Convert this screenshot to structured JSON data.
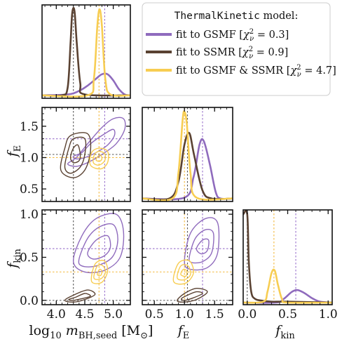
{
  "chart_data": {
    "type": "corner",
    "colors": {
      "gsmf": "#8f6bbd",
      "ssmr": "#5a4232",
      "both": "#f7cd52",
      "truth_dark": "#555555",
      "truth_purple": "#9a72cc",
      "truth_yellow": "#f3b93f"
    },
    "legend": {
      "placement": "top-right",
      "title_code": "ThermalKinetic",
      "title_suffix": " model:",
      "entries": [
        {
          "key": "gsmf",
          "label": "fit to GSMF [",
          "chi_label": "χ",
          "nu": "ν",
          "chi_value": " = 0.3]"
        },
        {
          "key": "ssmr",
          "label": "fit to SSMR [",
          "chi_label": "χ",
          "nu": "ν",
          "chi_value": " = 0.9]"
        },
        {
          "key": "both",
          "label": "fit to GSMF & SSMR [",
          "chi_label": "χ",
          "nu": "ν",
          "chi_value": " = 4.7]"
        }
      ]
    },
    "params": [
      {
        "id": "mseed",
        "label_main": "log",
        "label_sub10": "10",
        "label_m": " m",
        "label_sub": "BH,seed",
        "label_unit": " [M",
        "label_sun": "⊙",
        "label_close": "]",
        "range": [
          3.75,
          5.3
        ],
        "ticks": [
          4.0,
          4.5,
          5.0
        ],
        "ticklabels": [
          "4.0",
          "4.5",
          "5.0"
        ]
      },
      {
        "id": "fe",
        "label_main": "f",
        "label_sub": "E",
        "range": [
          0.3,
          1.8
        ],
        "ticks": [
          0.5,
          1.0,
          1.5
        ],
        "ticklabels": [
          "0.5",
          "1.0",
          "1.5"
        ]
      },
      {
        "id": "fkin",
        "label_main": "f",
        "label_sub": "kin",
        "range": [
          -0.05,
          1.05
        ],
        "ticks": [
          0.0,
          0.5,
          1.0
        ],
        "ticklabels": [
          "0.0",
          "0.5",
          "1.0"
        ]
      }
    ],
    "reference_lines": {
      "mseed": [
        {
          "value": 4.3,
          "color": "truth_dark"
        },
        {
          "value": 4.75,
          "color": "truth_yellow"
        },
        {
          "value": 4.85,
          "color": "truth_purple"
        }
      ],
      "fe": [
        {
          "value": 1.0,
          "color": "truth_yellow"
        },
        {
          "value": 1.05,
          "color": "truth_dark"
        },
        {
          "value": 1.3,
          "color": "truth_purple"
        }
      ],
      "fkin": [
        {
          "value": 0.0,
          "color": "truth_dark"
        },
        {
          "value": 0.33,
          "color": "truth_yellow"
        },
        {
          "value": 0.6,
          "color": "truth_purple"
        }
      ]
    },
    "marginals": {
      "mseed": {
        "gsmf": [
          [
            3.75,
            0.01
          ],
          [
            4.2,
            0.02
          ],
          [
            4.4,
            0.06
          ],
          [
            4.55,
            0.12
          ],
          [
            4.7,
            0.2
          ],
          [
            4.8,
            0.25
          ],
          [
            4.9,
            0.25
          ],
          [
            5.0,
            0.18
          ],
          [
            5.1,
            0.08
          ],
          [
            5.2,
            0.02
          ],
          [
            5.3,
            0.01
          ]
        ],
        "ssmr": [
          [
            3.75,
            0.01
          ],
          [
            4.1,
            0.01
          ],
          [
            4.2,
            0.1
          ],
          [
            4.25,
            0.6
          ],
          [
            4.28,
            0.95
          ],
          [
            4.32,
            0.97
          ],
          [
            4.36,
            0.6
          ],
          [
            4.42,
            0.15
          ],
          [
            4.5,
            0.02
          ],
          [
            5.3,
            0.01
          ]
        ],
        "both": [
          [
            3.75,
            0.01
          ],
          [
            4.55,
            0.01
          ],
          [
            4.66,
            0.2
          ],
          [
            4.72,
            0.8
          ],
          [
            4.76,
            0.99
          ],
          [
            4.8,
            0.8
          ],
          [
            4.86,
            0.2
          ],
          [
            4.95,
            0.02
          ],
          [
            5.3,
            0.01
          ]
        ]
      },
      "fe": {
        "gsmf": [
          [
            0.3,
            0.01
          ],
          [
            1.0,
            0.02
          ],
          [
            1.15,
            0.25
          ],
          [
            1.25,
            0.62
          ],
          [
            1.32,
            0.66
          ],
          [
            1.42,
            0.4
          ],
          [
            1.52,
            0.08
          ],
          [
            1.6,
            0.01
          ],
          [
            1.8,
            0.01
          ]
        ],
        "ssmr": [
          [
            0.3,
            0.01
          ],
          [
            0.75,
            0.01
          ],
          [
            0.9,
            0.2
          ],
          [
            1.0,
            0.62
          ],
          [
            1.08,
            0.75
          ],
          [
            1.16,
            0.5
          ],
          [
            1.3,
            0.1
          ],
          [
            1.45,
            0.01
          ],
          [
            1.8,
            0.01
          ]
        ],
        "both": [
          [
            0.3,
            0.01
          ],
          [
            0.8,
            0.01
          ],
          [
            0.9,
            0.3
          ],
          [
            0.97,
            0.9
          ],
          [
            1.0,
            0.99
          ],
          [
            1.04,
            0.85
          ],
          [
            1.1,
            0.3
          ],
          [
            1.2,
            0.02
          ],
          [
            1.8,
            0.01
          ]
        ]
      },
      "fkin": {
        "gsmf": [
          [
            -0.05,
            0.0
          ],
          [
            0.35,
            0.0
          ],
          [
            0.45,
            0.04
          ],
          [
            0.55,
            0.12
          ],
          [
            0.62,
            0.14
          ],
          [
            0.7,
            0.11
          ],
          [
            0.8,
            0.05
          ],
          [
            0.9,
            0.01
          ],
          [
            1.05,
            0.0
          ]
        ],
        "ssmr": [
          [
            -0.05,
            0.99
          ],
          [
            0.0,
            0.99
          ],
          [
            0.02,
            0.45
          ],
          [
            0.05,
            0.12
          ],
          [
            0.1,
            0.04
          ],
          [
            0.2,
            0.02
          ],
          [
            0.3,
            0.01
          ],
          [
            0.5,
            0.01
          ],
          [
            1.05,
            0.0
          ]
        ],
        "both": [
          [
            -0.05,
            0.0
          ],
          [
            0.2,
            0.01
          ],
          [
            0.25,
            0.12
          ],
          [
            0.3,
            0.33
          ],
          [
            0.34,
            0.36
          ],
          [
            0.38,
            0.2
          ],
          [
            0.43,
            0.04
          ],
          [
            0.5,
            0.0
          ],
          [
            1.05,
            0.0
          ]
        ]
      }
    },
    "contours": {
      "mseed_fe": {
        "gsmf": [
          [
            [
              4.3,
              1.02
            ],
            [
              4.45,
              1.08
            ],
            [
              4.6,
              1.22
            ],
            [
              4.85,
              1.38
            ],
            [
              5.0,
              1.45
            ],
            [
              5.02,
              1.35
            ],
            [
              4.9,
              1.2
            ],
            [
              4.7,
              1.08
            ],
            [
              4.5,
              1.0
            ],
            [
              4.35,
              0.98
            ]
          ],
          [
            [
              4.2,
              0.9
            ],
            [
              4.35,
              1.0
            ],
            [
              4.55,
              1.22
            ],
            [
              4.8,
              1.48
            ],
            [
              5.0,
              1.62
            ],
            [
              5.18,
              1.62
            ],
            [
              5.2,
              1.45
            ],
            [
              5.05,
              1.22
            ],
            [
              4.8,
              1.05
            ],
            [
              4.55,
              0.92
            ],
            [
              4.35,
              0.86
            ]
          ]
        ],
        "ssmr": [
          [
            [
              4.25,
              1.0
            ],
            [
              4.3,
              1.15
            ],
            [
              4.38,
              1.2
            ],
            [
              4.42,
              1.05
            ],
            [
              4.4,
              0.95
            ],
            [
              4.3,
              0.92
            ]
          ],
          [
            [
              4.15,
              0.85
            ],
            [
              4.22,
              1.15
            ],
            [
              4.3,
              1.3
            ],
            [
              4.5,
              1.3
            ],
            [
              4.5,
              1.05
            ],
            [
              4.42,
              0.85
            ],
            [
              4.25,
              0.75
            ]
          ],
          [
            [
              4.08,
              0.8
            ],
            [
              4.15,
              1.15
            ],
            [
              4.25,
              1.35
            ],
            [
              4.55,
              1.38
            ],
            [
              4.6,
              1.1
            ],
            [
              4.5,
              0.8
            ],
            [
              4.3,
              0.68
            ]
          ]
        ],
        "both": [
          [
            [
              4.7,
              0.96
            ],
            [
              4.73,
              1.02
            ],
            [
              4.78,
              1.04
            ],
            [
              4.8,
              0.98
            ],
            [
              4.76,
              0.94
            ]
          ],
          [
            [
              4.65,
              0.92
            ],
            [
              4.67,
              1.05
            ],
            [
              4.75,
              1.1
            ],
            [
              4.85,
              1.06
            ],
            [
              4.85,
              0.95
            ],
            [
              4.75,
              0.88
            ]
          ],
          [
            [
              4.6,
              0.88
            ],
            [
              4.62,
              1.08
            ],
            [
              4.75,
              1.15
            ],
            [
              4.9,
              1.1
            ],
            [
              4.9,
              0.92
            ],
            [
              4.78,
              0.82
            ]
          ]
        ]
      },
      "mseed_fkin": {
        "gsmf": [
          [
            [
              4.55,
              0.55
            ],
            [
              4.7,
              0.7
            ],
            [
              4.9,
              0.75
            ],
            [
              4.95,
              0.62
            ],
            [
              4.85,
              0.52
            ],
            [
              4.65,
              0.48
            ]
          ],
          [
            [
              4.4,
              0.48
            ],
            [
              4.55,
              0.72
            ],
            [
              4.75,
              0.85
            ],
            [
              5.0,
              0.88
            ],
            [
              5.08,
              0.7
            ],
            [
              4.98,
              0.5
            ],
            [
              4.7,
              0.4
            ],
            [
              4.45,
              0.4
            ]
          ],
          [
            [
              4.3,
              0.45
            ],
            [
              4.45,
              0.75
            ],
            [
              4.7,
              0.95
            ],
            [
              5.05,
              1.0
            ],
            [
              5.18,
              0.8
            ],
            [
              5.12,
              0.5
            ],
            [
              4.85,
              0.35
            ],
            [
              4.5,
              0.33
            ]
          ]
        ],
        "ssmr": [
          [
            [
              4.22,
              0.01
            ],
            [
              4.35,
              0.04
            ],
            [
              4.5,
              0.08
            ],
            [
              4.6,
              0.05
            ],
            [
              4.45,
              0.02
            ],
            [
              4.3,
              0.0
            ]
          ],
          [
            [
              4.15,
              0.0
            ],
            [
              4.3,
              0.06
            ],
            [
              4.55,
              0.12
            ],
            [
              4.68,
              0.07
            ],
            [
              4.5,
              0.01
            ],
            [
              4.3,
              -0.02
            ]
          ]
        ],
        "both": [
          [
            [
              4.72,
              0.3
            ],
            [
              4.76,
              0.36
            ],
            [
              4.8,
              0.34
            ],
            [
              4.78,
              0.29
            ]
          ],
          [
            [
              4.66,
              0.26
            ],
            [
              4.72,
              0.4
            ],
            [
              4.82,
              0.4
            ],
            [
              4.86,
              0.32
            ],
            [
              4.78,
              0.25
            ]
          ],
          [
            [
              4.62,
              0.22
            ],
            [
              4.68,
              0.42
            ],
            [
              4.84,
              0.46
            ],
            [
              4.9,
              0.34
            ],
            [
              4.8,
              0.21
            ]
          ]
        ]
      },
      "fe_fkin": {
        "gsmf": [
          [
            [
              1.2,
              0.6
            ],
            [
              1.3,
              0.7
            ],
            [
              1.4,
              0.7
            ],
            [
              1.38,
              0.58
            ],
            [
              1.28,
              0.54
            ]
          ],
          [
            [
              1.08,
              0.5
            ],
            [
              1.18,
              0.72
            ],
            [
              1.35,
              0.82
            ],
            [
              1.48,
              0.78
            ],
            [
              1.45,
              0.55
            ],
            [
              1.3,
              0.45
            ],
            [
              1.12,
              0.44
            ]
          ],
          [
            [
              1.0,
              0.45
            ],
            [
              1.1,
              0.78
            ],
            [
              1.35,
              0.95
            ],
            [
              1.55,
              0.9
            ],
            [
              1.55,
              0.55
            ],
            [
              1.38,
              0.38
            ],
            [
              1.1,
              0.36
            ]
          ]
        ],
        "ssmr": [
          [
            [
              0.95,
              0.02
            ],
            [
              1.05,
              0.06
            ],
            [
              1.2,
              0.1
            ],
            [
              1.3,
              0.08
            ],
            [
              1.15,
              0.03
            ],
            [
              1.0,
              0.0
            ]
          ],
          [
            [
              0.88,
              0.0
            ],
            [
              1.0,
              0.08
            ],
            [
              1.2,
              0.14
            ],
            [
              1.38,
              0.1
            ],
            [
              1.2,
              0.01
            ],
            [
              0.98,
              -0.02
            ]
          ]
        ],
        "both": [
          [
            [
              0.94,
              0.3
            ],
            [
              0.98,
              0.36
            ],
            [
              1.04,
              0.34
            ],
            [
              1.02,
              0.28
            ]
          ],
          [
            [
              0.88,
              0.26
            ],
            [
              0.94,
              0.4
            ],
            [
              1.06,
              0.4
            ],
            [
              1.1,
              0.3
            ],
            [
              1.0,
              0.24
            ]
          ],
          [
            [
              0.82,
              0.22
            ],
            [
              0.9,
              0.43
            ],
            [
              1.08,
              0.46
            ],
            [
              1.15,
              0.32
            ],
            [
              1.02,
              0.2
            ]
          ]
        ]
      }
    }
  }
}
